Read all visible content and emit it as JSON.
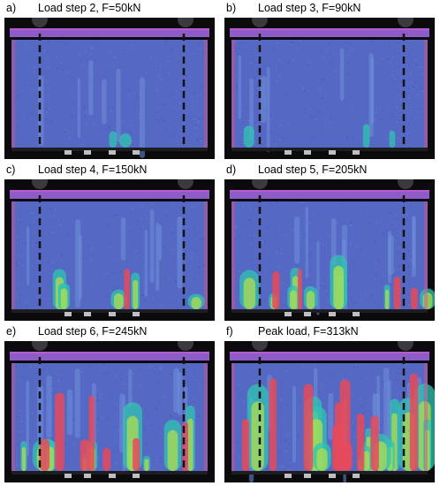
{
  "panels": [
    {
      "letter": "a)",
      "title": "Load step 2, F=50kN",
      "level": 0.05
    },
    {
      "letter": "b)",
      "title": "Load step 3, F=90kN",
      "level": 0.15
    },
    {
      "letter": "c)",
      "title": "Load step 4, F=150kN",
      "level": 0.35
    },
    {
      "letter": "d)",
      "title": "Load step 5, F=205kN",
      "level": 0.55
    },
    {
      "letter": "e)",
      "title": "Load step 6, F=245kN",
      "level": 0.75
    },
    {
      "letter": "f)",
      "title": "Peak load, F=313kN",
      "level": 0.95
    }
  ],
  "colors": {
    "background": "#0b0b0e",
    "low_strain": "#5568c4",
    "mid_strain": "#30c4b0",
    "high_strain": "#e84a5a",
    "top_beam": "#8e5cc8",
    "dashed_line": "#111111"
  }
}
